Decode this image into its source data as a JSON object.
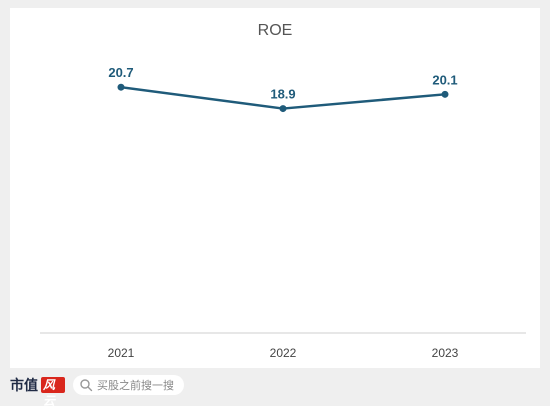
{
  "chart_data": {
    "type": "line",
    "title": "ROE",
    "xlabel": "",
    "ylabel": "",
    "categories": [
      "2021",
      "2022",
      "2023"
    ],
    "series": [
      {
        "values": [
          20.7,
          18.9,
          20.1
        ]
      }
    ],
    "value_labels": [
      "20.7",
      "18.9",
      "20.1"
    ],
    "ylim": [
      0,
      24
    ],
    "grid": false,
    "line_color": "#1f5b7a"
  },
  "footer": {
    "brand": "市值",
    "brand_badge": "风云",
    "search_placeholder": "买股之前搜一搜",
    "search_icon": "search-icon"
  }
}
